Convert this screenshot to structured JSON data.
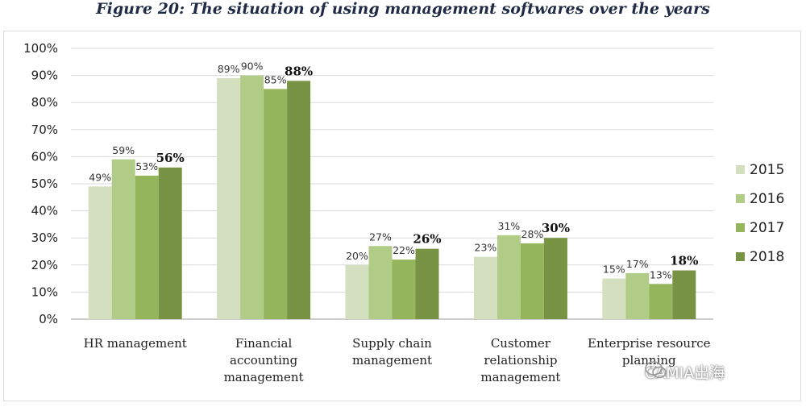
{
  "title": "Figure 20: The situation of using management softwares over the years",
  "watermark": "CAMIA出海",
  "colors": {
    "s2015": "#d3dfbf",
    "s2016": "#b1cc86",
    "s2017": "#94b55b",
    "s2018": "#779343",
    "grid": "#d9d9d9",
    "axis": "#999999"
  },
  "chart_data": {
    "type": "bar",
    "title": "Figure 20: The situation of using management softwares over the years",
    "xlabel": "",
    "ylabel": "",
    "ylim": [
      0,
      100
    ],
    "yticks": [
      "0%",
      "10%",
      "20%",
      "30%",
      "40%",
      "50%",
      "60%",
      "70%",
      "80%",
      "90%",
      "100%"
    ],
    "grid": true,
    "legend_position": "right",
    "categories": [
      [
        "HR management"
      ],
      [
        "Financial",
        "accounting",
        "management"
      ],
      [
        "Supply chain",
        "management"
      ],
      [
        "Customer",
        "relationship",
        "management"
      ],
      [
        "Enterprise resource",
        "planning"
      ]
    ],
    "series": [
      {
        "name": "2015",
        "values": [
          49,
          89,
          20,
          23,
          15
        ],
        "labels": [
          "49%",
          "89%",
          "20%",
          "23%",
          "15%"
        ]
      },
      {
        "name": "2016",
        "values": [
          59,
          90,
          27,
          31,
          17
        ],
        "labels": [
          "59%",
          "90%",
          "27%",
          "31%",
          "17%"
        ]
      },
      {
        "name": "2017",
        "values": [
          53,
          85,
          22,
          28,
          13
        ],
        "labels": [
          "53%",
          "85%",
          "22%",
          "28%",
          "13%"
        ]
      },
      {
        "name": "2018",
        "values": [
          56,
          88,
          26,
          30,
          18
        ],
        "labels": [
          "56%",
          "88%",
          "26%",
          "30%",
          "18%"
        ]
      }
    ]
  }
}
